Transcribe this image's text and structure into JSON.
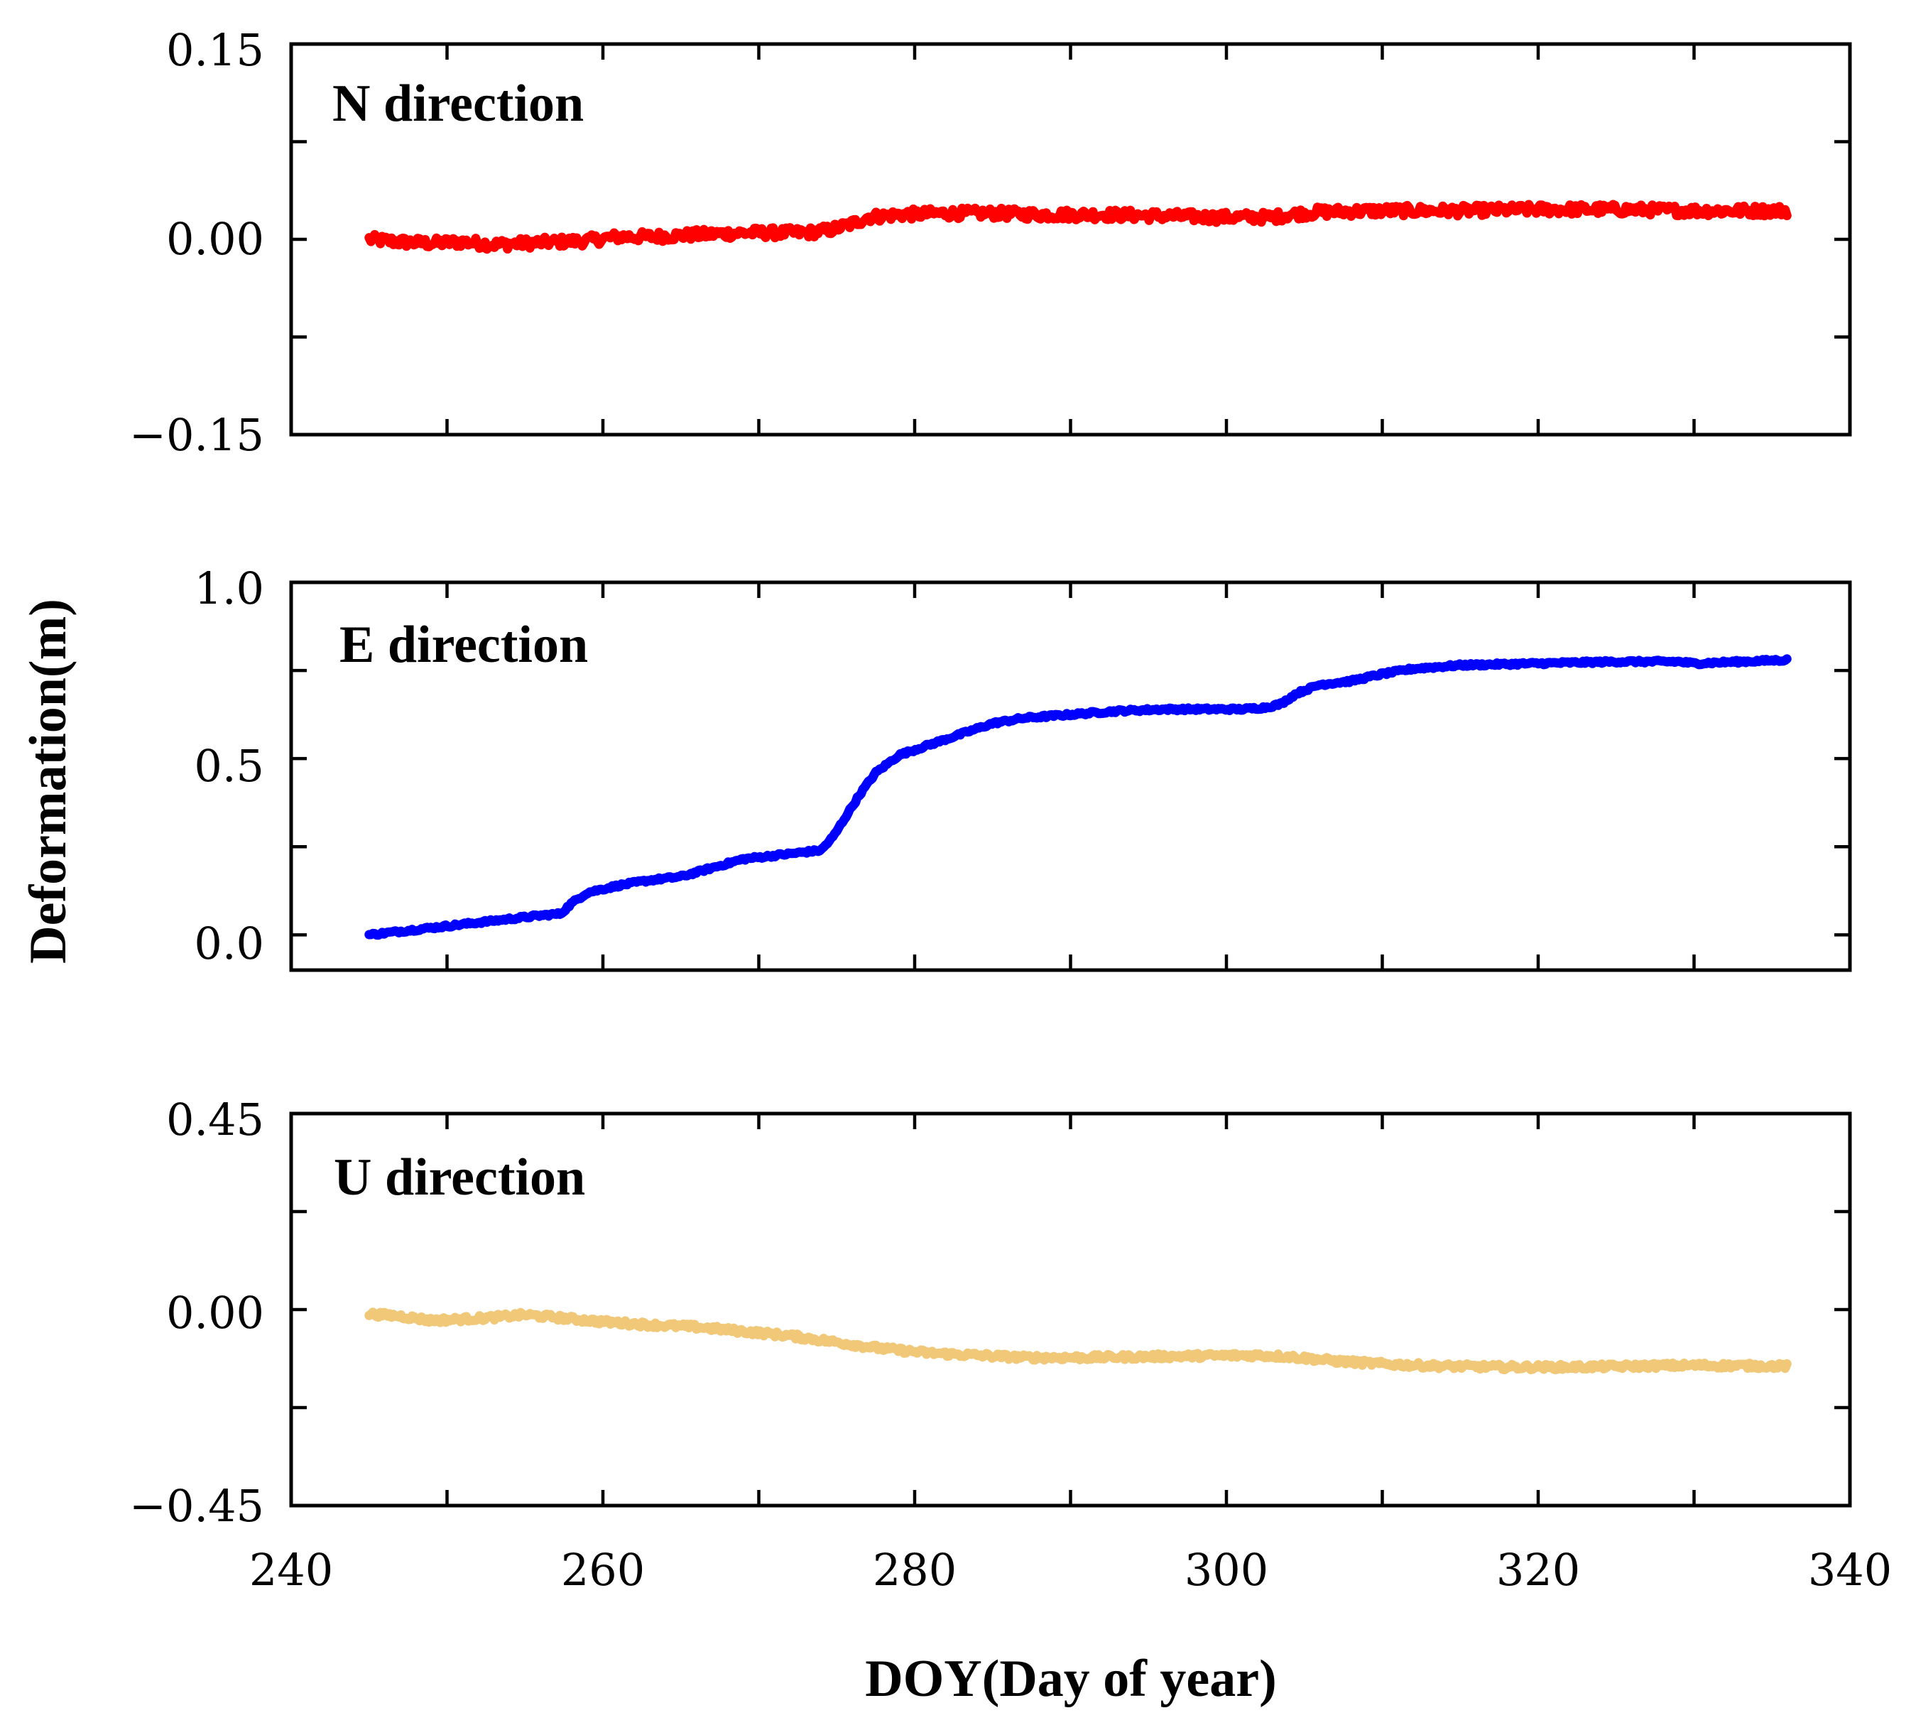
{
  "figure": {
    "ylabel": "Deformation(m)",
    "xlabel": "DOY(Day of year)"
  },
  "chart_data": [
    {
      "type": "line",
      "title": "N direction",
      "xlabel": "DOY(Day of year)",
      "ylabel": "Deformation(m)",
      "xlim": [
        240,
        340
      ],
      "ylim": [
        -0.15,
        0.15
      ],
      "xticks": [
        240,
        260,
        280,
        300,
        320,
        340
      ],
      "yticks": [
        -0.15,
        0,
        0.15
      ],
      "ytick_labels": [
        "−0.15",
        "0.00",
        "0.15"
      ],
      "color": "#ff0000",
      "noise": 0.004,
      "series": [
        {
          "name": "N direction",
          "x": [
            245,
            247,
            249,
            251,
            253,
            255,
            257,
            259,
            261,
            263,
            265,
            267,
            269,
            271,
            273,
            274.5,
            276,
            277,
            279,
            282,
            285,
            288,
            292,
            296,
            299,
            301,
            303,
            304,
            306,
            310,
            315,
            320,
            325,
            330,
            336
          ],
          "values": [
            0.0,
            -0.002,
            -0.003,
            -0.002,
            -0.004,
            -0.003,
            -0.002,
            -0.001,
            0.002,
            0.002,
            0.003,
            0.004,
            0.005,
            0.005,
            0.005,
            0.007,
            0.012,
            0.017,
            0.019,
            0.02,
            0.02,
            0.019,
            0.019,
            0.018,
            0.017,
            0.017,
            0.017,
            0.019,
            0.021,
            0.022,
            0.022,
            0.023,
            0.023,
            0.022,
            0.022
          ]
        }
      ]
    },
    {
      "type": "line",
      "title": "E direction",
      "xlabel": "DOY(Day of year)",
      "ylabel": "Deformation(m)",
      "xlim": [
        240,
        340
      ],
      "ylim": [
        -0.1,
        1.0
      ],
      "xticks": [
        240,
        260,
        280,
        300,
        320,
        340
      ],
      "yticks": [
        0,
        0.5,
        1.0
      ],
      "ytick_labels": [
        "0.0",
        "0.5",
        "1.0"
      ],
      "color": "#0000ff",
      "noise": 0.004,
      "series": [
        {
          "name": "E direction",
          "x": [
            245,
            249,
            253,
            256,
            257.3,
            258,
            259,
            261,
            263,
            265,
            267,
            269,
            271,
            273,
            274,
            274.8,
            275.5,
            276.5,
            277.5,
            279,
            281,
            283,
            285,
            287,
            290,
            293,
            296,
            299,
            301,
            302.5,
            303.5,
            304.5,
            306,
            308,
            310,
            312,
            315,
            320,
            325,
            329,
            330,
            336
          ],
          "values": [
            0.0,
            0.02,
            0.04,
            0.055,
            0.06,
            0.09,
            0.12,
            0.14,
            0.155,
            0.165,
            0.19,
            0.215,
            0.225,
            0.235,
            0.24,
            0.28,
            0.33,
            0.4,
            0.46,
            0.51,
            0.54,
            0.57,
            0.6,
            0.615,
            0.625,
            0.635,
            0.64,
            0.64,
            0.64,
            0.645,
            0.655,
            0.685,
            0.71,
            0.72,
            0.74,
            0.755,
            0.765,
            0.77,
            0.775,
            0.775,
            0.77,
            0.78
          ]
        }
      ]
    },
    {
      "type": "line",
      "title": "U direction",
      "xlabel": "DOY(Day of year)",
      "ylabel": "Deformation(m)",
      "xlim": [
        240,
        340
      ],
      "ylim": [
        -0.45,
        0.45
      ],
      "xticks": [
        240,
        260,
        280,
        300,
        320,
        340
      ],
      "yticks": [
        -0.45,
        0,
        0.45
      ],
      "ytick_labels": [
        "−0.45",
        "0.00",
        "0.45"
      ],
      "color": "#f0c878",
      "noise": 0.006,
      "series": [
        {
          "name": "U direction",
          "x": [
            245,
            247,
            249,
            251,
            253,
            255,
            257,
            260,
            263,
            266,
            269,
            272,
            275,
            278,
            281,
            284,
            287,
            291,
            295,
            299,
            302,
            304,
            307,
            310,
            314,
            318,
            322,
            326,
            330,
            336
          ],
          "values": [
            -0.01,
            -0.015,
            -0.025,
            -0.022,
            -0.018,
            -0.012,
            -0.018,
            -0.028,
            -0.035,
            -0.04,
            -0.05,
            -0.06,
            -0.075,
            -0.09,
            -0.1,
            -0.105,
            -0.11,
            -0.11,
            -0.108,
            -0.106,
            -0.105,
            -0.108,
            -0.118,
            -0.125,
            -0.13,
            -0.132,
            -0.132,
            -0.13,
            -0.128,
            -0.13
          ]
        }
      ]
    }
  ]
}
